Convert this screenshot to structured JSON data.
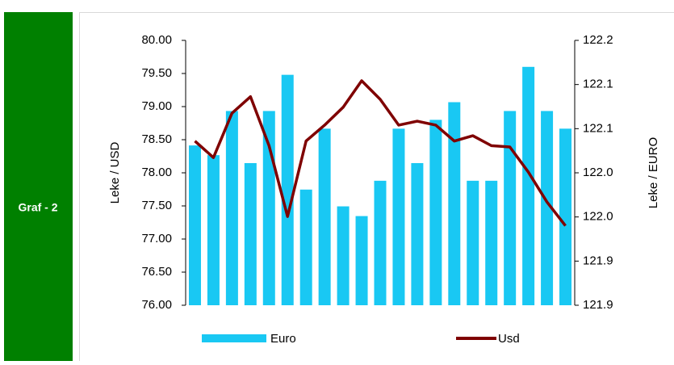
{
  "sidebar": {
    "label": "Graf - 2"
  },
  "chart_data": {
    "type": "bar-line",
    "ylabel": "Leke / USD",
    "y2label": "Leke / EURO",
    "categories": [
      null,
      null,
      null,
      null,
      null,
      null,
      null,
      null,
      null,
      null,
      null,
      null,
      null,
      null,
      null,
      null,
      null,
      null,
      null,
      null,
      null
    ],
    "series": [
      {
        "name": "Euro",
        "type": "bar",
        "axis": "y2",
        "color": "#19c8f3",
        "values": [
          122.061,
          122.05,
          122.1,
          122.041,
          122.1,
          122.141,
          122.011,
          122.08,
          121.992,
          121.981,
          122.021,
          122.08,
          122.041,
          122.09,
          122.11,
          122.021,
          122.021,
          122.1,
          122.15,
          122.1,
          122.08
        ]
      },
      {
        "name": "Usd",
        "type": "line",
        "axis": "y",
        "color": "#7f0000",
        "values": [
          78.48,
          78.23,
          78.9,
          79.15,
          78.41,
          77.34,
          78.48,
          78.72,
          78.99,
          79.39,
          79.11,
          78.72,
          78.78,
          78.72,
          78.48,
          78.56,
          78.41,
          78.39,
          78.01,
          77.56,
          77.2
        ]
      }
    ],
    "ylim": [
      76,
      80
    ],
    "yticks": [
      {
        "value": 76,
        "label": "76.00"
      },
      {
        "value": 76.5,
        "label": "76.50"
      },
      {
        "value": 77,
        "label": "77.00"
      },
      {
        "value": 77.5,
        "label": "77.50"
      },
      {
        "value": 78,
        "label": "78.00"
      },
      {
        "value": 78.5,
        "label": "78.50"
      },
      {
        "value": 79,
        "label": "79.00"
      },
      {
        "value": 79.5,
        "label": "79.50"
      },
      {
        "value": 80,
        "label": "80.00"
      }
    ],
    "y2lim": [
      121.88,
      122.18
    ],
    "y2ticks": [
      {
        "value": 121.88,
        "label": "121.9"
      },
      {
        "value": 121.93,
        "label": "121.9"
      },
      {
        "value": 121.98,
        "label": "122.0"
      },
      {
        "value": 122.03,
        "label": "122.0"
      },
      {
        "value": 122.08,
        "label": "122.1"
      },
      {
        "value": 122.13,
        "label": "122.1"
      },
      {
        "value": 122.18,
        "label": "122.2"
      }
    ],
    "grid": false,
    "legend": "bottom"
  }
}
